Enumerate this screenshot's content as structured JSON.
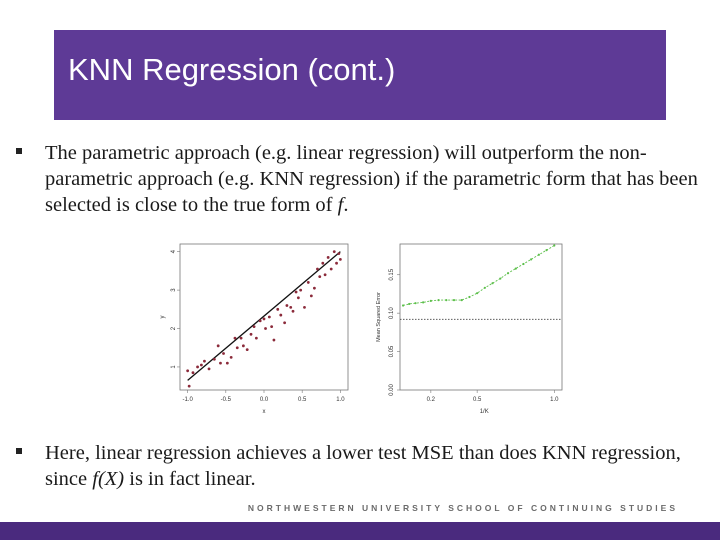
{
  "slide": {
    "title": "KNN Regression (cont.)",
    "bullets": [
      {
        "before": "The parametric approach (e.g. linear regression) will outperform the non-parametric approach (e.g. KNN regression) if the parametric form that has been selected is close to the true form of ",
        "emph": "f",
        "after": "."
      },
      {
        "before": "Here, linear regression achieves a lower test MSE than does KNN regression, since ",
        "emph": "f(X)",
        "after": " is in fact linear."
      }
    ],
    "footer": "NORTHWESTERN UNIVERSITY SCHOOL OF CONTINUING STUDIES"
  },
  "colors": {
    "title_bg": "#5e3a96",
    "footer_bar": "#4a2a7e",
    "points": "#8b2a3a",
    "knn_curve": "#5cbf4a",
    "ls_line": "#555555"
  },
  "chart_data": [
    {
      "type": "scatter",
      "xlabel": "x",
      "ylabel": "y",
      "xlim": [
        -1.1,
        1.1
      ],
      "ylim": [
        0.4,
        4.2
      ],
      "xticks": [
        "-1.0",
        "-0.5",
        "0.0",
        "0.5",
        "1.0"
      ],
      "yticks": [
        "1",
        "2",
        "3",
        "4"
      ],
      "points": [
        [
          -1.0,
          0.9
        ],
        [
          -0.98,
          0.5
        ],
        [
          -0.93,
          0.85
        ],
        [
          -0.87,
          1.0
        ],
        [
          -0.82,
          1.05
        ],
        [
          -0.78,
          1.15
        ],
        [
          -0.72,
          0.95
        ],
        [
          -0.65,
          1.2
        ],
        [
          -0.6,
          1.55
        ],
        [
          -0.57,
          1.1
        ],
        [
          -0.53,
          1.35
        ],
        [
          -0.48,
          1.1
        ],
        [
          -0.43,
          1.25
        ],
        [
          -0.38,
          1.75
        ],
        [
          -0.35,
          1.5
        ],
        [
          -0.3,
          1.75
        ],
        [
          -0.27,
          1.55
        ],
        [
          -0.22,
          1.45
        ],
        [
          -0.17,
          1.85
        ],
        [
          -0.13,
          2.05
        ],
        [
          -0.1,
          1.75
        ],
        [
          -0.05,
          2.2
        ],
        [
          0.0,
          2.25
        ],
        [
          0.02,
          2.0
        ],
        [
          0.07,
          2.3
        ],
        [
          0.1,
          2.05
        ],
        [
          0.13,
          1.7
        ],
        [
          0.18,
          2.5
        ],
        [
          0.22,
          2.35
        ],
        [
          0.27,
          2.15
        ],
        [
          0.3,
          2.6
        ],
        [
          0.35,
          2.55
        ],
        [
          0.38,
          2.45
        ],
        [
          0.42,
          2.95
        ],
        [
          0.45,
          2.8
        ],
        [
          0.48,
          3.0
        ],
        [
          0.53,
          2.55
        ],
        [
          0.58,
          3.2
        ],
        [
          0.62,
          2.85
        ],
        [
          0.66,
          3.05
        ],
        [
          0.7,
          3.55
        ],
        [
          0.73,
          3.35
        ],
        [
          0.77,
          3.7
        ],
        [
          0.8,
          3.4
        ],
        [
          0.84,
          3.85
        ],
        [
          0.88,
          3.55
        ],
        [
          0.92,
          4.0
        ],
        [
          0.95,
          3.7
        ],
        [
          0.98,
          3.95
        ],
        [
          1.0,
          3.8
        ]
      ],
      "fit_line": {
        "x": [
          -1.0,
          1.0
        ],
        "y": [
          0.65,
          4.0
        ]
      }
    },
    {
      "type": "line",
      "xlabel": "1/K",
      "ylabel": "Mean Squared Error",
      "xlim": [
        0.0,
        1.05
      ],
      "ylim": [
        0.0,
        0.19
      ],
      "xticks": [
        "0.2",
        "0.5",
        "1.0"
      ],
      "yticks": [
        "0.00",
        "0.05",
        "0.10",
        "0.15"
      ],
      "series": [
        {
          "x": [
            0.02,
            0.06,
            0.1,
            0.15,
            0.2,
            0.25,
            0.3,
            0.35,
            0.4,
            0.45,
            0.5,
            0.55,
            0.6,
            0.65,
            0.7,
            0.75,
            0.8,
            0.85,
            0.9,
            0.95,
            1.0
          ],
          "values": [
            0.11,
            0.112,
            0.113,
            0.114,
            0.116,
            0.117,
            0.117,
            0.117,
            0.117,
            0.121,
            0.126,
            0.133,
            0.139,
            0.145,
            0.152,
            0.158,
            0.164,
            0.17,
            0.176,
            0.182,
            0.188
          ]
        }
      ],
      "hline": 0.092
    }
  ]
}
